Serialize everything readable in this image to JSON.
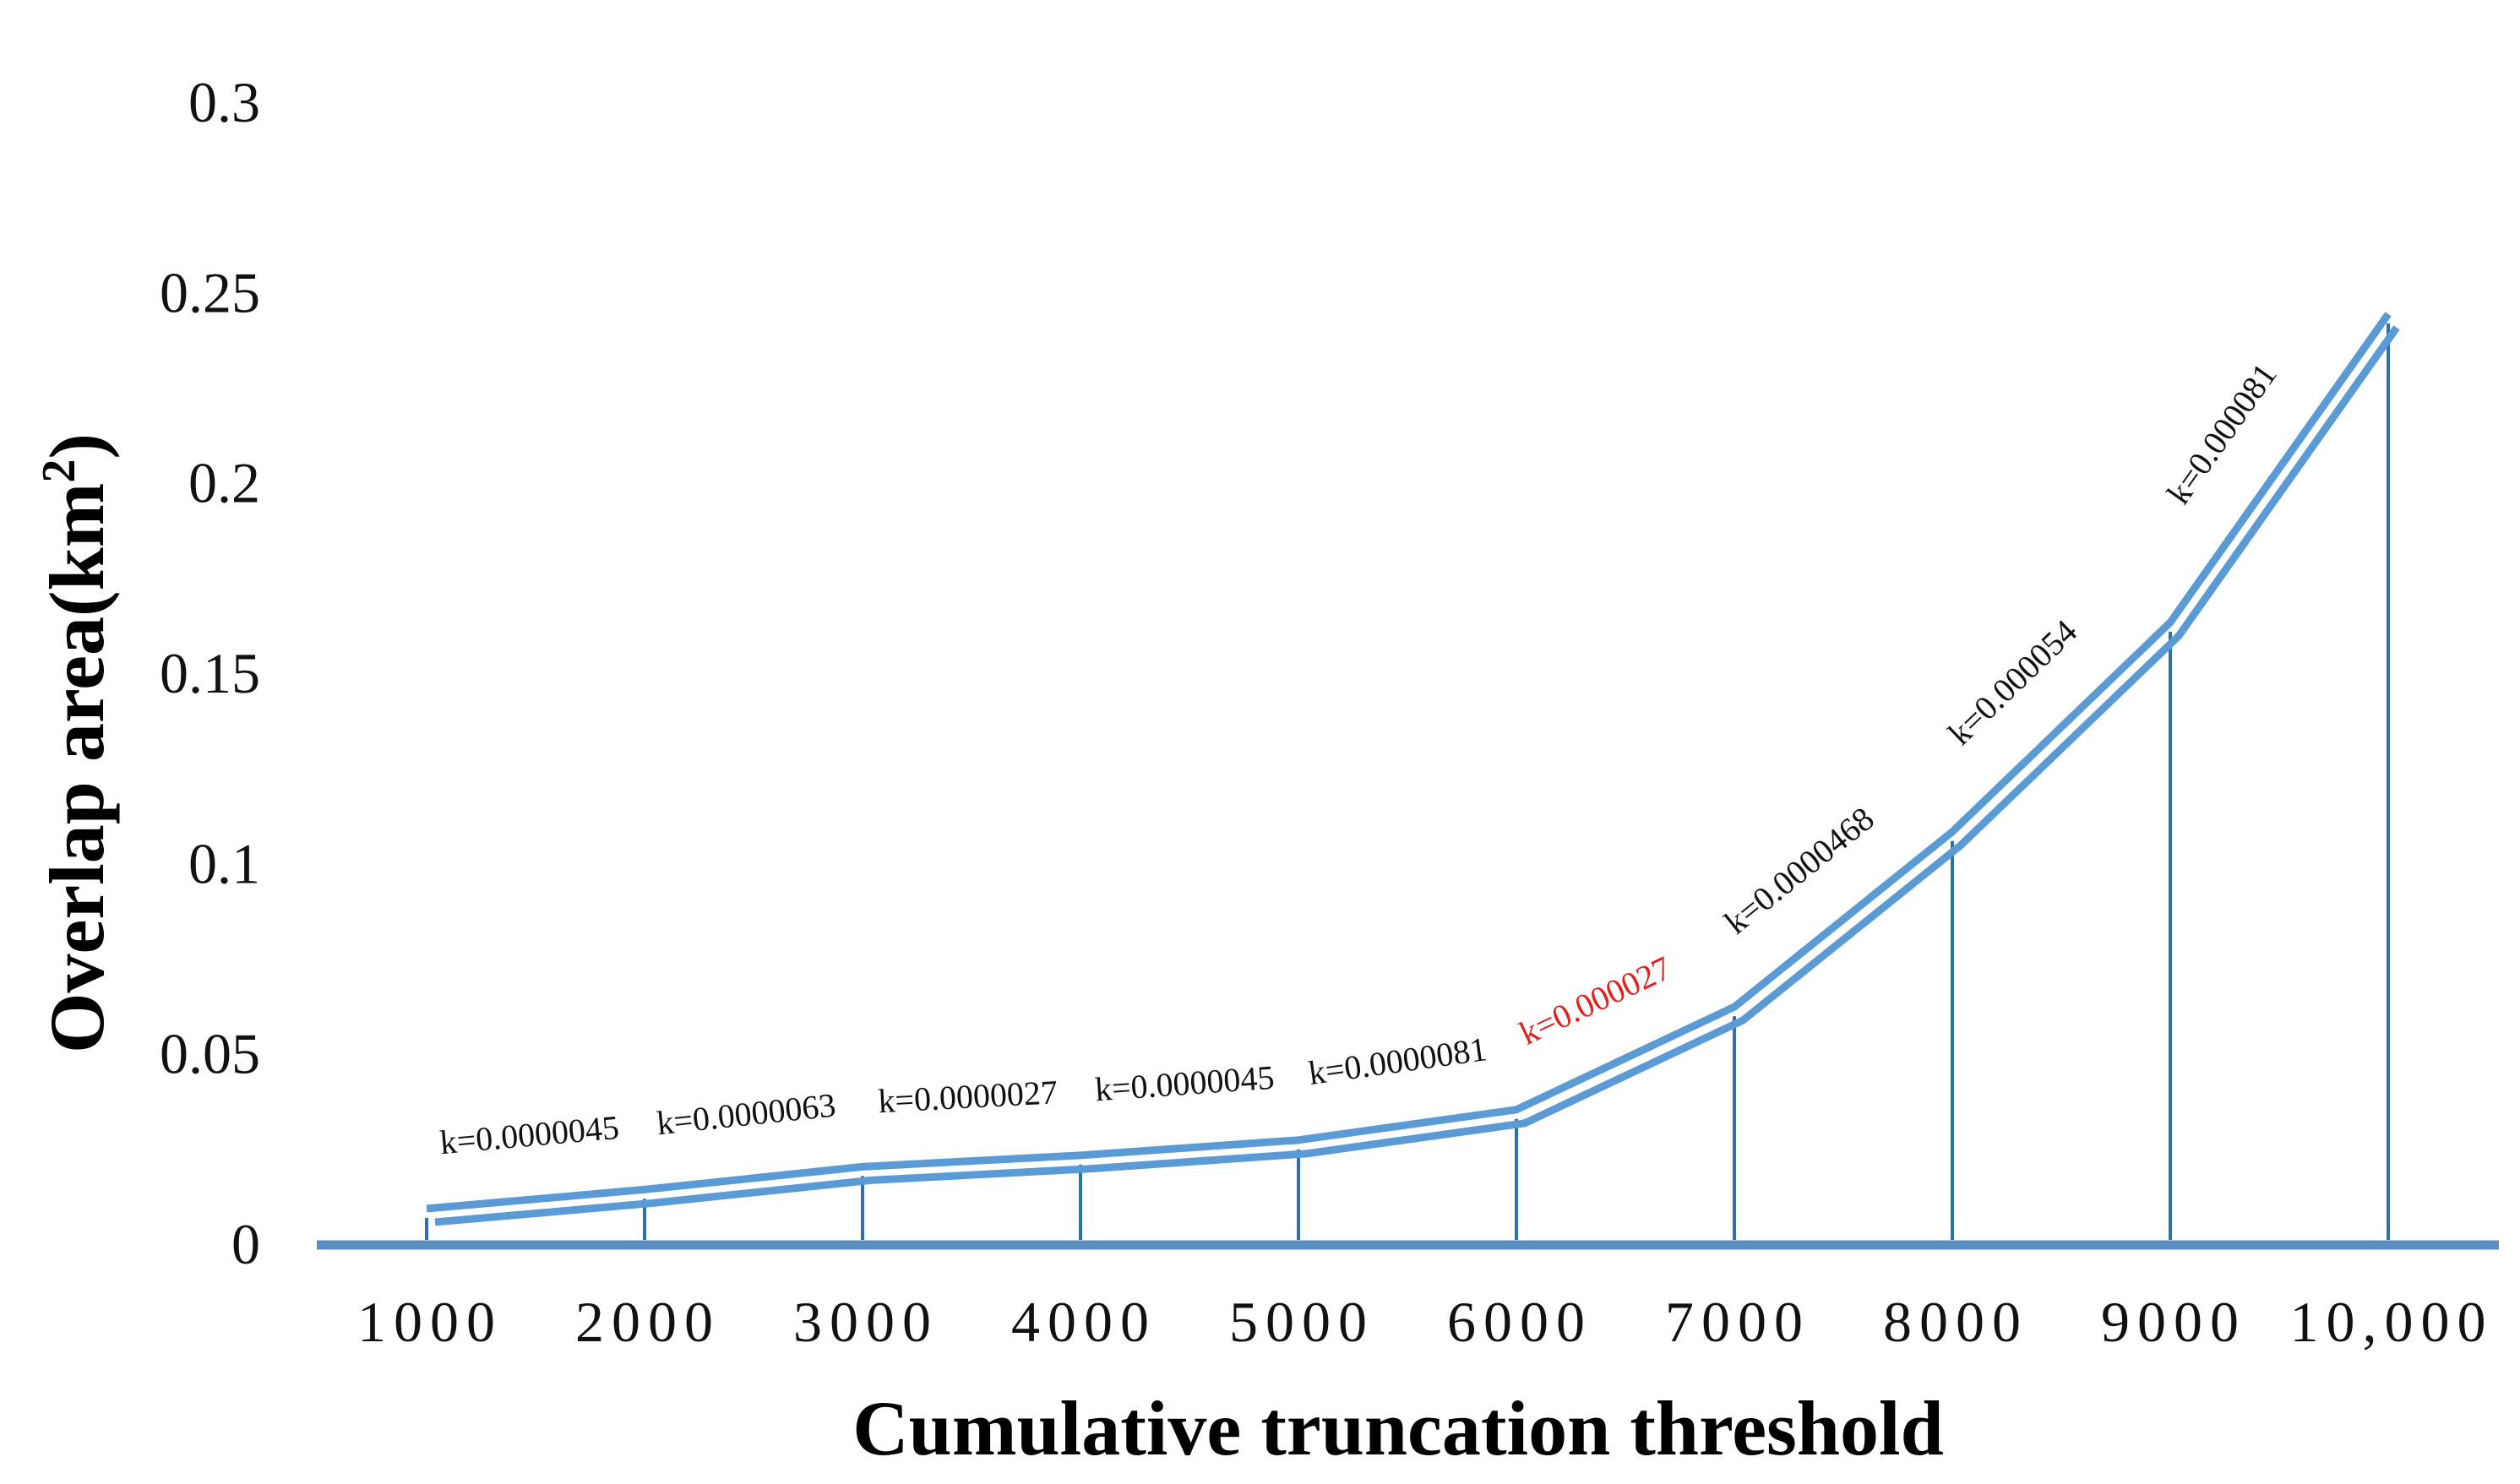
{
  "chart_data": {
    "type": "line",
    "xlabel": "Cumulative truncation threshold",
    "ylabel": "Overlap area(km",
    "ylabel_sup": "2",
    "ylabel_close": ")",
    "categories": [
      "1000",
      "2000",
      "3000",
      "4000",
      "5000",
      "6000",
      "7000",
      "8000",
      "9000",
      "10,000"
    ],
    "x": [
      1000,
      2000,
      3000,
      4000,
      5000,
      6000,
      7000,
      8000,
      9000,
      10000
    ],
    "values": [
      0.008,
      0.013,
      0.019,
      0.022,
      0.026,
      0.034,
      0.061,
      0.107,
      0.162,
      0.243
    ],
    "ylim": [
      0,
      0.3
    ],
    "yticks": [
      0,
      0.05,
      0.1,
      0.15,
      0.2,
      0.25,
      0.3
    ],
    "ytick_labels": [
      "0",
      "0.05",
      "0.1",
      "0.15",
      "0.2",
      "0.25",
      "0.3"
    ],
    "segment_labels": [
      {
        "text": "k=0.0000045",
        "highlight": false
      },
      {
        "text": "k=0.0000063",
        "highlight": false
      },
      {
        "text": "k=0.0000027",
        "highlight": false
      },
      {
        "text": "k=0.0000045",
        "highlight": false
      },
      {
        "text": "k=0.0000081",
        "highlight": false
      },
      {
        "text": "k=0.000027",
        "highlight": true
      },
      {
        "text": "k=0.0000468",
        "highlight": false
      },
      {
        "text": "k=0.000054",
        "highlight": false
      },
      {
        "text": "k=0.000081",
        "highlight": false
      }
    ],
    "colors": {
      "line": "#5b9bd5",
      "drop_line": "#2e6fae",
      "axis": "#5a8fc2",
      "highlight_label": "#e0201c"
    },
    "grid": false,
    "legend": "none"
  }
}
